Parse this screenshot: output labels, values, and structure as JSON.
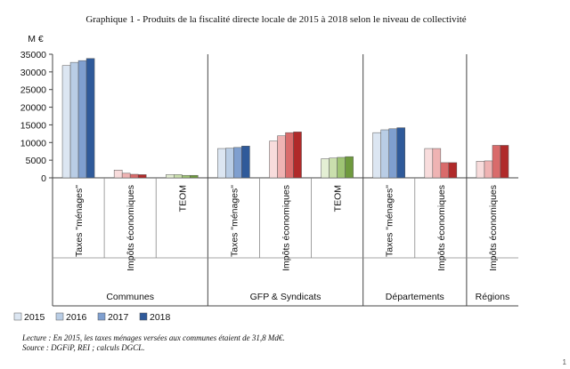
{
  "chart_data": {
    "type": "bar",
    "title": "Graphique 1 - Produits de la fiscalité directe locale de 2015 à 2018 selon le niveau de collectivité",
    "ylabel": "M €",
    "ylim": [
      0,
      35000
    ],
    "yticks": [
      "0",
      "5000",
      "10000",
      "15000",
      "20000",
      "25000",
      "30000",
      "35000"
    ],
    "ytick_values": [
      0,
      5000,
      10000,
      15000,
      20000,
      25000,
      30000,
      35000
    ],
    "grid": false,
    "legend_position": "bottom-left",
    "series_names": [
      "2015",
      "2016",
      "2017",
      "2018"
    ],
    "groups": [
      {
        "label": "Communes",
        "categories": [
          {
            "label": "Taxes \"ménages\"",
            "palette": "blue",
            "values": [
              31800,
              32700,
              33200,
              33800
            ]
          },
          {
            "label": "Impôts économiques",
            "palette": "red",
            "values": [
              2200,
              1300,
              1000,
              900
            ]
          },
          {
            "label": "TEOM",
            "palette": "green",
            "values": [
              900,
              900,
              700,
              700
            ]
          }
        ]
      },
      {
        "label": "GFP & Syndicats",
        "categories": [
          {
            "label": "Taxes \"ménages\"",
            "palette": "blue",
            "values": [
              8300,
              8400,
              8600,
              9000
            ]
          },
          {
            "label": "Impôts économiques",
            "palette": "red",
            "values": [
              10400,
              11900,
              12800,
              13000
            ]
          },
          {
            "label": "TEOM",
            "palette": "green",
            "values": [
              5400,
              5600,
              5800,
              6000
            ]
          }
        ]
      },
      {
        "label": "Départements",
        "categories": [
          {
            "label": "Taxes \"ménages\"",
            "palette": "blue",
            "values": [
              12800,
              13600,
              13900,
              14200
            ]
          },
          {
            "label": "Impôts économiques",
            "palette": "red",
            "values": [
              8300,
              8300,
              4300,
              4300
            ]
          }
        ]
      },
      {
        "label": "Régions",
        "categories": [
          {
            "label": "Impôts économiques",
            "palette": "red",
            "values": [
              4700,
              4800,
              9200,
              9200
            ]
          }
        ]
      }
    ],
    "notes": {
      "lecture": "Lecture : En 2015, les taxes ménages versées aux communes étaient de 31,8 Md€.",
      "source": "Source : DGFiP, REI ; calculs DGCL."
    }
  },
  "colors": {
    "blue": [
      "#dce6f2",
      "#b9cde5",
      "#7f9fcf",
      "#2f5a9a"
    ],
    "red": [
      "#f8dcdc",
      "#efb3b3",
      "#d96b6b",
      "#b02a2a"
    ],
    "green": [
      "#e4efd4",
      "#cadfad",
      "#9fc474",
      "#6f9a3e"
    ],
    "axis": "#444444",
    "text": "#111111"
  },
  "page_number": "1"
}
